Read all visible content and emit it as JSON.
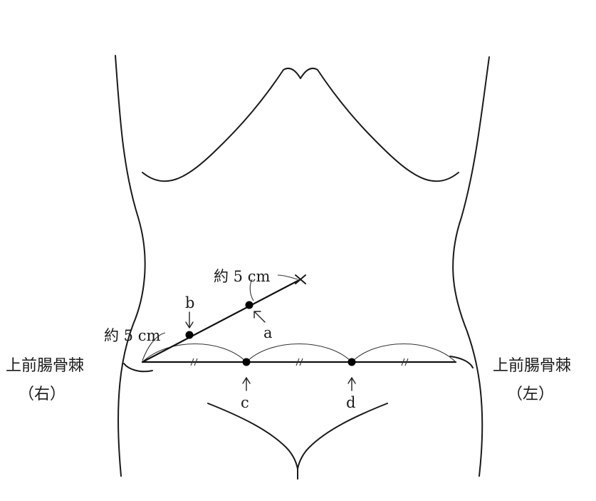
{
  "measure_label": "約 5 cm",
  "points": {
    "a": "a",
    "b": "b",
    "c": "c",
    "d": "d"
  },
  "landmarks": {
    "right_name": "上前腸骨棘",
    "right_side": "（右）",
    "left_name": "上前腸骨棘",
    "left_side": "（左）"
  },
  "colors": {
    "line": "#111111",
    "background": "#ffffff"
  }
}
